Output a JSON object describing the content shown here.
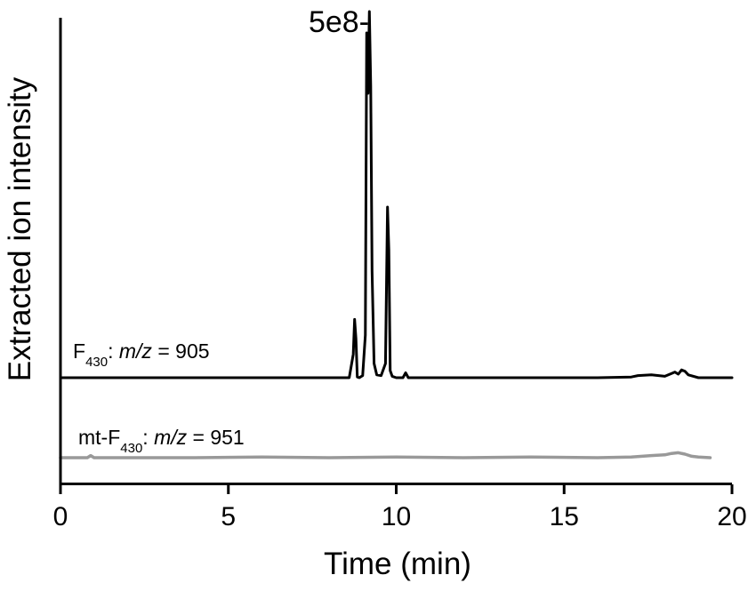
{
  "chart_data": {
    "type": "line",
    "xlabel": "Time (min)",
    "ylabel": "Extracted ion intensity",
    "xlim": [
      0,
      20
    ],
    "x_ticks": [
      0,
      5,
      10,
      15,
      20
    ],
    "x_tick_labels": [
      "0",
      "5",
      "10",
      "15",
      "20"
    ],
    "scale_label": "5e8-",
    "scale_value": 500000000,
    "series": [
      {
        "label_prefix": "F",
        "label_subscript": "430",
        "label_suffix_sep": ": ",
        "label_mz": "m/z",
        "label_value": " = 905",
        "color": "#000000",
        "x": [
          0.0,
          2.0,
          4.0,
          6.0,
          8.0,
          8.6,
          8.72,
          8.76,
          8.8,
          8.84,
          8.9,
          9.0,
          9.08,
          9.12,
          9.16,
          9.2,
          9.24,
          9.28,
          9.34,
          9.42,
          9.55,
          9.68,
          9.74,
          9.78,
          9.82,
          9.88,
          10.0,
          10.2,
          10.28,
          10.36,
          10.6,
          12.0,
          14.0,
          16.0,
          17.0,
          17.2,
          17.6,
          18.0,
          18.2,
          18.3,
          18.4,
          18.5,
          18.6,
          18.7,
          19.0,
          20.0
        ],
        "y": [
          0,
          0,
          0,
          0,
          0,
          0,
          33000000.0,
          82000000.0,
          55000000.0,
          1000000.0,
          0,
          3000000.0,
          60000000.0,
          485000000.0,
          400000000.0,
          515000000.0,
          410000000.0,
          150000000.0,
          20000000.0,
          4000000.0,
          3000000.0,
          20000000.0,
          240000000.0,
          180000000.0,
          10000000.0,
          2000000.0,
          0,
          0,
          7000000.0,
          0,
          0,
          0,
          0,
          0,
          1000000.0,
          3000000.0,
          4000000.0,
          2000000.0,
          6000000.0,
          8000000.0,
          5000000.0,
          11000000.0,
          9000000.0,
          4000000.0,
          0,
          0
        ]
      },
      {
        "label_prefix": "mt-F",
        "label_subscript": "430",
        "label_suffix_sep": ": ",
        "label_mz": "m/z",
        "label_value": " = 951",
        "color": "#999999",
        "x": [
          0.0,
          0.8,
          0.9,
          1.0,
          2.0,
          4.0,
          6.0,
          8.0,
          10.0,
          12.0,
          14.0,
          16.0,
          17.0,
          17.6,
          18.0,
          18.2,
          18.4,
          18.6,
          18.8,
          19.0,
          19.35
        ],
        "y": [
          0,
          0,
          3000000.0,
          0,
          0,
          0,
          1000000.0,
          0,
          1000000.0,
          0,
          1000000.0,
          0,
          1000000.0,
          3000000.0,
          4000000.0,
          6000000.0,
          7000000.0,
          5000000.0,
          2000000.0,
          1000000.0,
          0
        ]
      }
    ]
  }
}
